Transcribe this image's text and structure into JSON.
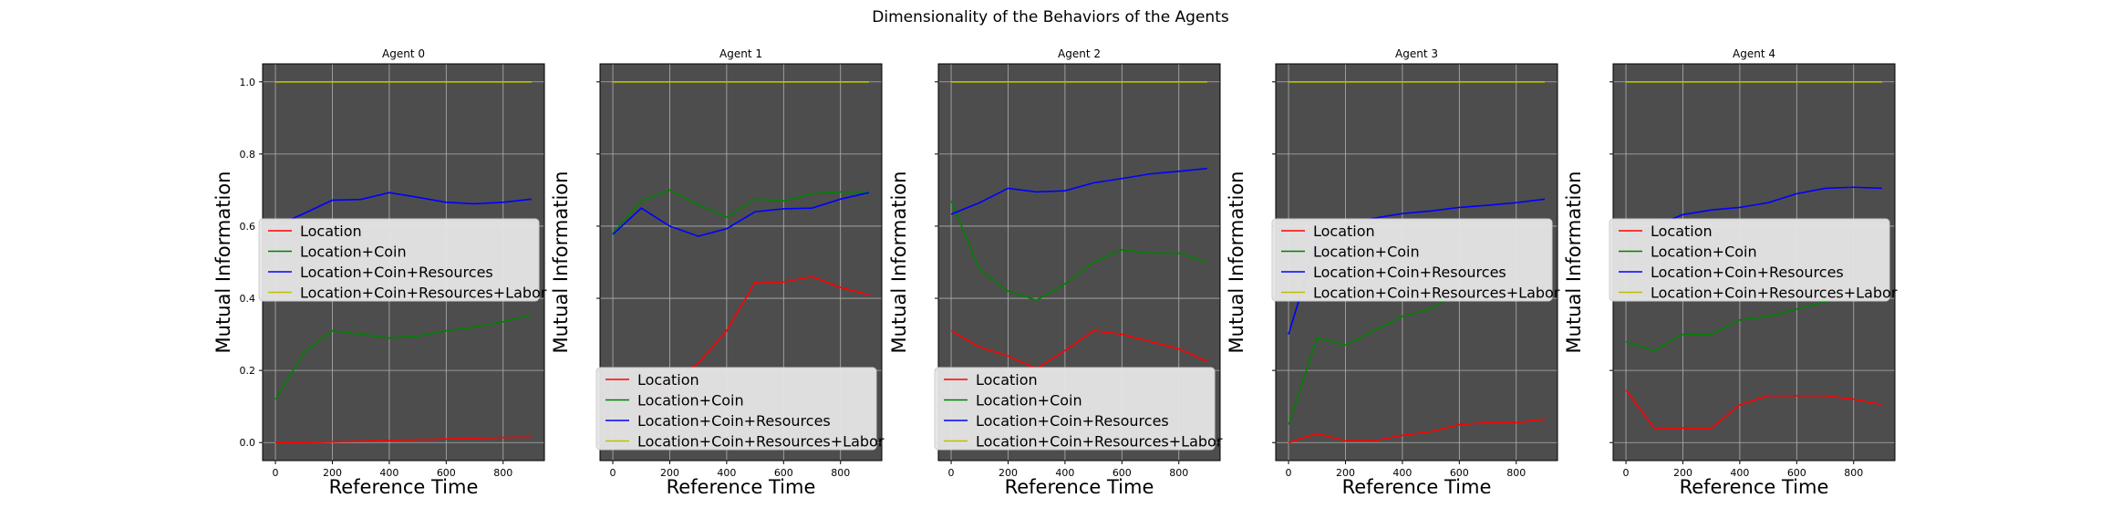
{
  "figure": {
    "title": "Dimensionality of the Behaviors of the Agents"
  },
  "colors": {
    "panel_bg": "#4d4d4d",
    "grid": "#b0b0b0",
    "Location": "#ff0000",
    "Location+Coin": "#008000",
    "Location+Coin+Resources": "#0000ff",
    "Location+Coin+Resources+Labor": "#bfbf00"
  },
  "chart_data": [
    {
      "type": "line",
      "title": "Agent 0",
      "xlabel": "Reference Time",
      "ylabel": "Mutual Information",
      "xlim": [
        -45,
        945
      ],
      "ylim": [
        -0.05,
        1.05
      ],
      "xticks": [
        0,
        200,
        400,
        600,
        800
      ],
      "yticks": [
        0.0,
        0.2,
        0.4,
        0.6,
        0.8,
        1.0
      ],
      "show_yticklabels": true,
      "grid": true,
      "legend_position": "center-left",
      "x": [
        0,
        100,
        200,
        300,
        400,
        500,
        600,
        700,
        800,
        900
      ],
      "series": [
        {
          "name": "Location",
          "values": [
            0.0,
            0.0,
            0.002,
            0.004,
            0.006,
            0.008,
            0.01,
            0.012,
            0.014,
            0.015
          ]
        },
        {
          "name": "Location+Coin",
          "values": [
            0.12,
            0.25,
            0.31,
            0.3,
            0.29,
            0.295,
            0.31,
            0.32,
            0.335,
            0.355
          ]
        },
        {
          "name": "Location+Coin+Resources",
          "values": [
            0.6,
            0.635,
            0.672,
            0.674,
            0.693,
            0.68,
            0.666,
            0.662,
            0.666,
            0.675
          ]
        },
        {
          "name": "Location+Coin+Resources+Labor",
          "values": [
            1.0,
            1.0,
            1.0,
            1.0,
            1.0,
            1.0,
            1.0,
            1.0,
            1.0,
            1.0
          ]
        }
      ]
    },
    {
      "type": "line",
      "title": "Agent 1",
      "xlabel": "Reference Time",
      "ylabel": "Mutual Information",
      "xlim": [
        -45,
        945
      ],
      "ylim": [
        -0.05,
        1.05
      ],
      "xticks": [
        0,
        200,
        400,
        600,
        800
      ],
      "yticks": [
        0.0,
        0.2,
        0.4,
        0.6,
        0.8,
        1.0
      ],
      "show_yticklabels": false,
      "grid": true,
      "legend_position": "lower-left",
      "x": [
        0,
        100,
        200,
        300,
        400,
        500,
        600,
        700,
        800,
        900
      ],
      "series": [
        {
          "name": "Location",
          "values": [
            0.03,
            0.08,
            0.17,
            0.22,
            0.31,
            0.445,
            0.445,
            0.46,
            0.43,
            0.41
          ]
        },
        {
          "name": "Location+Coin",
          "values": [
            0.58,
            0.67,
            0.7,
            0.66,
            0.625,
            0.675,
            0.67,
            0.69,
            0.695,
            0.695
          ]
        },
        {
          "name": "Location+Coin+Resources",
          "values": [
            0.577,
            0.65,
            0.6,
            0.572,
            0.593,
            0.64,
            0.648,
            0.65,
            0.675,
            0.693
          ]
        },
        {
          "name": "Location+Coin+Resources+Labor",
          "values": [
            1.0,
            1.0,
            1.0,
            1.0,
            1.0,
            1.0,
            1.0,
            1.0,
            1.0,
            1.0
          ]
        }
      ]
    },
    {
      "type": "line",
      "title": "Agent 2",
      "xlabel": "Reference Time",
      "ylabel": "Mutual Information",
      "xlim": [
        -45,
        945
      ],
      "ylim": [
        -0.05,
        1.05
      ],
      "xticks": [
        0,
        200,
        400,
        600,
        800
      ],
      "yticks": [
        0.0,
        0.2,
        0.4,
        0.6,
        0.8,
        1.0
      ],
      "show_yticklabels": false,
      "grid": true,
      "legend_position": "lower-left",
      "x": [
        0,
        100,
        200,
        300,
        400,
        500,
        600,
        700,
        800,
        900
      ],
      "series": [
        {
          "name": "Location",
          "values": [
            0.31,
            0.265,
            0.24,
            0.205,
            0.255,
            0.31,
            0.3,
            0.28,
            0.26,
            0.225
          ]
        },
        {
          "name": "Location+Coin",
          "values": [
            0.67,
            0.48,
            0.42,
            0.395,
            0.44,
            0.5,
            0.535,
            0.525,
            0.525,
            0.5
          ]
        },
        {
          "name": "Location+Coin+Resources",
          "values": [
            0.633,
            0.665,
            0.705,
            0.695,
            0.698,
            0.72,
            0.732,
            0.745,
            0.752,
            0.76
          ]
        },
        {
          "name": "Location+Coin+Resources+Labor",
          "values": [
            1.0,
            1.0,
            1.0,
            1.0,
            1.0,
            1.0,
            1.0,
            1.0,
            1.0,
            1.0
          ]
        }
      ]
    },
    {
      "type": "line",
      "title": "Agent 3",
      "xlabel": "Reference Time",
      "ylabel": "Mutual Information",
      "xlim": [
        -45,
        945
      ],
      "ylim": [
        -0.05,
        1.05
      ],
      "xticks": [
        0,
        200,
        400,
        600,
        800
      ],
      "yticks": [
        0.0,
        0.2,
        0.4,
        0.6,
        0.8,
        1.0
      ],
      "show_yticklabels": false,
      "grid": true,
      "legend_position": "center-left",
      "x": [
        0,
        100,
        200,
        300,
        400,
        500,
        600,
        700,
        800,
        900
      ],
      "series": [
        {
          "name": "Location",
          "values": [
            0.0,
            0.025,
            0.005,
            0.005,
            0.02,
            0.03,
            0.05,
            0.055,
            0.055,
            0.065
          ]
        },
        {
          "name": "Location+Coin",
          "values": [
            0.05,
            0.29,
            0.27,
            0.31,
            0.35,
            0.37,
            0.42,
            0.44,
            0.44,
            0.46
          ]
        },
        {
          "name": "Location+Coin+Resources",
          "values": [
            0.3,
            0.56,
            0.605,
            0.622,
            0.635,
            0.642,
            0.652,
            0.658,
            0.665,
            0.675
          ]
        },
        {
          "name": "Location+Coin+Resources+Labor",
          "values": [
            1.0,
            1.0,
            1.0,
            1.0,
            1.0,
            1.0,
            1.0,
            1.0,
            1.0,
            1.0
          ]
        }
      ]
    },
    {
      "type": "line",
      "title": "Agent 4",
      "xlabel": "Reference Time",
      "ylabel": "Mutual Information",
      "xlim": [
        -45,
        945
      ],
      "ylim": [
        -0.05,
        1.05
      ],
      "xticks": [
        0,
        200,
        400,
        600,
        800
      ],
      "yticks": [
        0.0,
        0.2,
        0.4,
        0.6,
        0.8,
        1.0
      ],
      "show_yticklabels": false,
      "grid": true,
      "legend_position": "center-left",
      "x": [
        0,
        100,
        200,
        300,
        400,
        500,
        600,
        700,
        800,
        900
      ],
      "series": [
        {
          "name": "Location",
          "values": [
            0.145,
            0.04,
            0.04,
            0.04,
            0.105,
            0.13,
            0.13,
            0.13,
            0.12,
            0.105
          ]
        },
        {
          "name": "Location+Coin",
          "values": [
            0.28,
            0.255,
            0.3,
            0.3,
            0.34,
            0.35,
            0.37,
            0.39,
            0.4,
            0.41
          ]
        },
        {
          "name": "Location+Coin+Resources",
          "values": [
            0.56,
            0.6,
            0.632,
            0.645,
            0.652,
            0.665,
            0.69,
            0.705,
            0.708,
            0.705
          ]
        },
        {
          "name": "Location+Coin+Resources+Labor",
          "values": [
            1.0,
            1.0,
            1.0,
            1.0,
            1.0,
            1.0,
            1.0,
            1.0,
            1.0,
            1.0
          ]
        }
      ]
    }
  ]
}
